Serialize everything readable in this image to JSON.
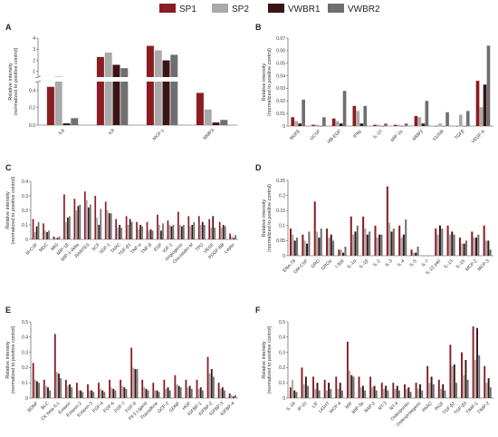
{
  "legend": {
    "items": [
      {
        "name": "SP1",
        "color": "#8b1c22"
      },
      {
        "name": "SP2",
        "color": "#a9a9a9"
      },
      {
        "name": "VWBR1",
        "color": "#3a1414"
      },
      {
        "name": "VWBR2",
        "color": "#6f6f6f"
      }
    ]
  },
  "chart_data": [
    {
      "panel": "A",
      "type": "bar",
      "broken_axis": true,
      "ylabel": "Relative intensity",
      "ylabel2": "(normalized to positive control)",
      "categories": [
        "IL6",
        "IL8",
        "MCP-1",
        "MMP3"
      ],
      "yticks_upper": [
        1,
        2,
        3,
        4
      ],
      "yticks_lower": [
        0.0,
        0.2,
        0.4
      ],
      "series": [
        {
          "name": "SP1",
          "values": [
            0.44,
            2.3,
            3.3,
            0.37
          ]
        },
        {
          "name": "SP2",
          "values": [
            0.55,
            2.7,
            2.9,
            0.18
          ]
        },
        {
          "name": "VWBR1",
          "values": [
            0.02,
            1.6,
            2.0,
            0.03
          ]
        },
        {
          "name": "VWBR2",
          "values": [
            0.08,
            1.3,
            2.5,
            0.06
          ]
        }
      ]
    },
    {
      "panel": "B",
      "type": "bar",
      "ylabel": "Relative intensity",
      "ylabel2": "(normalized to positive control)",
      "categories": [
        "NGFβ",
        "GCSF",
        "HB-EGF",
        "IFNγ",
        "IL-10",
        "MIP-1α",
        "MMP2",
        "S100B",
        "TGFβ",
        "VEGF-A"
      ],
      "yticks": [
        0.0,
        0.01,
        0.02,
        0.03,
        0.04,
        0.05,
        0.06,
        0.07
      ],
      "ylim": [
        0,
        0.07
      ],
      "series": [
        {
          "name": "SP1",
          "values": [
            0.007,
            0.001,
            0.006,
            0.016,
            0.001,
            0.001,
            0.008,
            0.0,
            0.0,
            0.036
          ]
        },
        {
          "name": "SP2",
          "values": [
            0.004,
            0.001,
            0.004,
            0.012,
            0.001,
            0.001,
            0.007,
            0.002,
            0.009,
            0.015
          ]
        },
        {
          "name": "VWBR1",
          "values": [
            0.002,
            0.0,
            0.002,
            0.002,
            0.0,
            0.0,
            0.002,
            0.0,
            0.0,
            0.033
          ]
        },
        {
          "name": "VWBR2",
          "values": [
            0.021,
            0.007,
            0.028,
            0.016,
            0.002,
            0.002,
            0.02,
            0.011,
            0.012,
            0.064
          ]
        }
      ]
    },
    {
      "panel": "C",
      "type": "bar",
      "ylabel": "Relative intensity",
      "ylabel2": "(normalized to positive control)",
      "categories": [
        "M-CSF",
        "MDC",
        "MIG",
        "MIP-1β",
        "MIP-1-delta",
        "RANTES",
        "SCF",
        "SDF-1",
        "TARC",
        "TGF-β1",
        "TNF-α",
        "TNF-β",
        "EGF",
        "IGF-1",
        "Angiogenin",
        "Oncostatin M",
        "TPO",
        "VEGF",
        "PDGF-BB",
        "Leptin"
      ],
      "yticks": [
        0.0,
        0.1,
        0.2,
        0.3,
        0.4
      ],
      "ylim": [
        0,
        0.4
      ],
      "series": [
        {
          "name": "SP1",
          "values": [
            0.14,
            0.11,
            0.02,
            0.31,
            0.28,
            0.33,
            0.3,
            0.26,
            0.14,
            0.16,
            0.12,
            0.12,
            0.17,
            0.13,
            0.19,
            0.16,
            0.16,
            0.14,
            0.12,
            0.04
          ]
        },
        {
          "name": "SP2",
          "values": [
            0.05,
            0.06,
            0.01,
            0.12,
            0.2,
            0.27,
            0.15,
            0.2,
            0.08,
            0.1,
            0.07,
            0.06,
            0.1,
            0.1,
            0.1,
            0.09,
            0.1,
            0.08,
            0.08,
            0.02
          ]
        },
        {
          "name": "VWBR1",
          "values": [
            0.09,
            0.05,
            0.01,
            0.15,
            0.23,
            0.22,
            0.1,
            0.18,
            0.1,
            0.14,
            0.1,
            0.07,
            0.06,
            0.09,
            0.09,
            0.1,
            0.12,
            0.16,
            0.1,
            0.01
          ]
        },
        {
          "name": "VWBR2",
          "values": [
            0.12,
            0.06,
            0.02,
            0.16,
            0.24,
            0.24,
            0.21,
            0.18,
            0.08,
            0.12,
            0.09,
            0.06,
            0.11,
            0.1,
            0.1,
            0.12,
            0.1,
            0.08,
            0.09,
            0.03
          ]
        }
      ]
    },
    {
      "panel": "D",
      "type": "bar",
      "ylabel": "Relative intensity",
      "ylabel2": "(normalized to positive control)",
      "categories": [
        "ENA-78",
        "GM-CSF",
        "GRO",
        "GROα",
        "I-309",
        "IL-1α",
        "IL-1β",
        "IL-2",
        "IL-3",
        "IL-4",
        "IL-5",
        "IL-7",
        "IL-12 p40",
        "IL-13",
        "IL-15",
        "MCP-2",
        "MCP-3"
      ],
      "yticks": [
        0.0,
        0.05,
        0.1,
        0.15,
        0.2,
        0.25
      ],
      "ylim": [
        0,
        0.25
      ],
      "series": [
        {
          "name": "SP1",
          "values": [
            0.09,
            0.07,
            0.18,
            0.09,
            0.02,
            0.13,
            0.13,
            0.1,
            0.23,
            0.1,
            0.02,
            0.0,
            0.09,
            0.1,
            0.06,
            0.08,
            0.1
          ]
        },
        {
          "name": "SP2",
          "values": [
            0.07,
            0.05,
            0.08,
            0.06,
            0.02,
            0.07,
            0.09,
            0.06,
            0.11,
            0.06,
            0.01,
            0.0,
            0.07,
            0.07,
            0.04,
            0.06,
            0.05
          ]
        },
        {
          "name": "VWBR1",
          "values": [
            0.05,
            0.04,
            0.06,
            0.07,
            0.01,
            0.08,
            0.07,
            0.07,
            0.08,
            0.07,
            0.01,
            0.0,
            0.1,
            0.08,
            0.04,
            0.06,
            0.05
          ]
        },
        {
          "name": "VWBR2",
          "values": [
            0.06,
            0.08,
            0.09,
            0.05,
            0.03,
            0.1,
            0.08,
            0.07,
            0.09,
            0.12,
            0.03,
            0.0,
            0.09,
            0.07,
            0.05,
            0.07,
            0.02
          ]
        }
      ]
    },
    {
      "panel": "E",
      "type": "bar",
      "ylabel": "Relative intensity",
      "ylabel2": "(normalized to positive control)",
      "categories": [
        "BDNF",
        "BLC",
        "CK beta 8-1",
        "Eotaxin",
        "Eotaxin-2",
        "Eotaxin-3",
        "FGF-4",
        "FGF-6",
        "FGF-7",
        "FGF-9",
        "Flt-3 Ligand",
        "Fractalkine",
        "GCP-2",
        "GDNF",
        "HGF",
        "IGFBP-1",
        "IGFBP-2",
        "IGFBP-3",
        "IGFBP-4"
      ],
      "yticks": [
        0.0,
        0.1,
        0.2,
        0.3,
        0.4,
        0.5
      ],
      "ylim": [
        0,
        0.5
      ],
      "series": [
        {
          "name": "SP1",
          "values": [
            0.23,
            0.12,
            0.42,
            0.12,
            0.1,
            0.09,
            0.1,
            0.12,
            0.12,
            0.33,
            0.12,
            0.1,
            0.12,
            0.15,
            0.12,
            0.12,
            0.27,
            0.1,
            0.03
          ]
        },
        {
          "name": "SP2",
          "values": [
            0.12,
            0.08,
            0.17,
            0.08,
            0.05,
            0.05,
            0.06,
            0.07,
            0.08,
            0.2,
            0.07,
            0.05,
            0.06,
            0.09,
            0.07,
            0.06,
            0.16,
            0.06,
            0.02
          ]
        },
        {
          "name": "VWBR1",
          "values": [
            0.11,
            0.07,
            0.16,
            0.09,
            0.05,
            0.05,
            0.05,
            0.06,
            0.07,
            0.19,
            0.06,
            0.05,
            0.07,
            0.08,
            0.08,
            0.07,
            0.19,
            0.07,
            0.01
          ]
        },
        {
          "name": "VWBR2",
          "values": [
            0.1,
            0.05,
            0.13,
            0.07,
            0.04,
            0.04,
            0.04,
            0.05,
            0.06,
            0.19,
            0.05,
            0.04,
            0.05,
            0.07,
            0.06,
            0.05,
            0.14,
            0.05,
            0.02
          ]
        }
      ]
    },
    {
      "panel": "F",
      "type": "bar",
      "ylabel": "Relative intensity",
      "ylabel2": "(normalized to positive control)",
      "categories": [
        "IL-16",
        "IP-10",
        "LIF",
        "LIGHT",
        "MCP-4",
        "MIF",
        "MIP-3α",
        "NAP-2",
        "NT-3",
        "NT-4",
        "Osteopontin",
        "Osteoprotegerin",
        "PARC",
        "PlGF",
        "TGF-β2",
        "TGF-β3",
        "TIMP-1",
        "TIMP-2"
      ],
      "yticks": [
        0.0,
        0.1,
        0.2,
        0.3,
        0.4,
        0.5
      ],
      "ylim": [
        0,
        0.5
      ],
      "series": [
        {
          "name": "SP1",
          "values": [
            0.07,
            0.2,
            0.14,
            0.12,
            0.14,
            0.37,
            0.14,
            0.14,
            0.1,
            0.1,
            0.09,
            0.1,
            0.21,
            0.12,
            0.35,
            0.3,
            0.47,
            0.21
          ]
        },
        {
          "name": "SP2",
          "values": [
            0.12,
            0.09,
            0.06,
            0.05,
            0.06,
            0.18,
            0.07,
            0.07,
            0.06,
            0.06,
            0.06,
            0.06,
            0.1,
            0.06,
            0.21,
            0.15,
            0.25,
            0.1
          ]
        },
        {
          "name": "VWBR1",
          "values": [
            0.05,
            0.14,
            0.1,
            0.1,
            0.1,
            0.15,
            0.08,
            0.08,
            0.08,
            0.08,
            0.07,
            0.09,
            0.14,
            0.09,
            0.22,
            0.25,
            0.46,
            0.13
          ]
        },
        {
          "name": "VWBR2",
          "values": [
            0.04,
            0.08,
            0.05,
            0.06,
            0.05,
            0.14,
            0.05,
            0.05,
            0.05,
            0.05,
            0.04,
            0.05,
            0.09,
            0.05,
            0.1,
            0.12,
            0.28,
            0.07
          ]
        }
      ]
    }
  ]
}
